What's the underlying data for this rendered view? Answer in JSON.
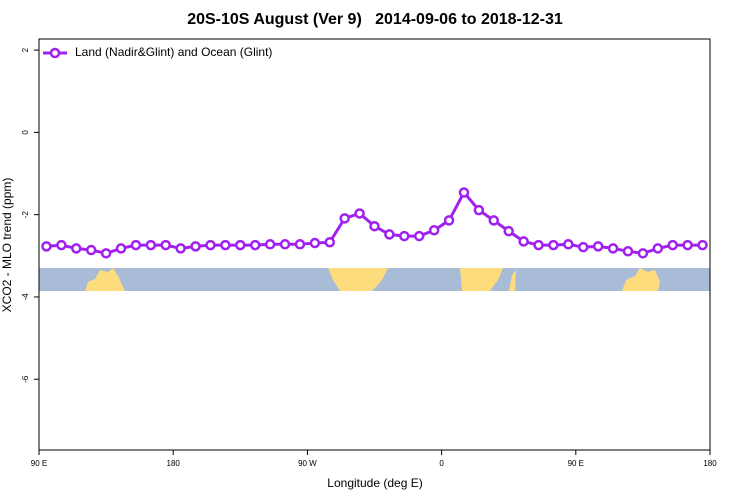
{
  "chart_data": {
    "type": "line",
    "title": "20S-10S August (Ver 9)   2014-09-06 to 2018-12-31",
    "x_label": "Longitude (deg E)",
    "y_label": "XCO2 - MLO trend (ppm)",
    "x": [
      95,
      105,
      115,
      125,
      135,
      145,
      155,
      165,
      175,
      185,
      195,
      205,
      215,
      225,
      235,
      245,
      255,
      265,
      275,
      285,
      295,
      305,
      315,
      325,
      335,
      345,
      355,
      365,
      375,
      385,
      395,
      405,
      415,
      425,
      435,
      445,
      455,
      465,
      475,
      485,
      495,
      505,
      515,
      525,
      535
    ],
    "series": [
      {
        "name": "Land (Nadir&Glint) and Ocean (Glint)",
        "color": "#a020f0",
        "values": [
          -2.77,
          -2.74,
          -2.82,
          -2.86,
          -2.94,
          -2.82,
          -2.74,
          -2.74,
          -2.74,
          -2.82,
          -2.77,
          -2.74,
          -2.74,
          -2.74,
          -2.74,
          -2.72,
          -2.72,
          -2.72,
          -2.69,
          -2.67,
          -2.09,
          -1.97,
          -2.28,
          -2.48,
          -2.52,
          -2.52,
          -2.38,
          -2.14,
          -1.46,
          -1.89,
          -2.14,
          -2.4,
          -2.65,
          -2.74,
          -2.74,
          -2.72,
          -2.79,
          -2.77,
          -2.82,
          -2.89,
          -2.94,
          -2.82,
          -2.74,
          -2.74,
          -2.74
        ]
      }
    ],
    "xlim": [
      90,
      540
    ],
    "xticks": [
      {
        "value": 90,
        "label": "90 E"
      },
      180,
      {
        "value": 270,
        "label": "90 W"
      },
      {
        "value": 360,
        "label": "0"
      },
      {
        "value": 450,
        "label": "90 E"
      },
      {
        "value": 540,
        "label": "180"
      }
    ],
    "ylim": [
      -7.72,
      2.27
    ],
    "yticks": [
      2,
      0,
      -2,
      -4,
      -6
    ],
    "legend": "top-left"
  }
}
